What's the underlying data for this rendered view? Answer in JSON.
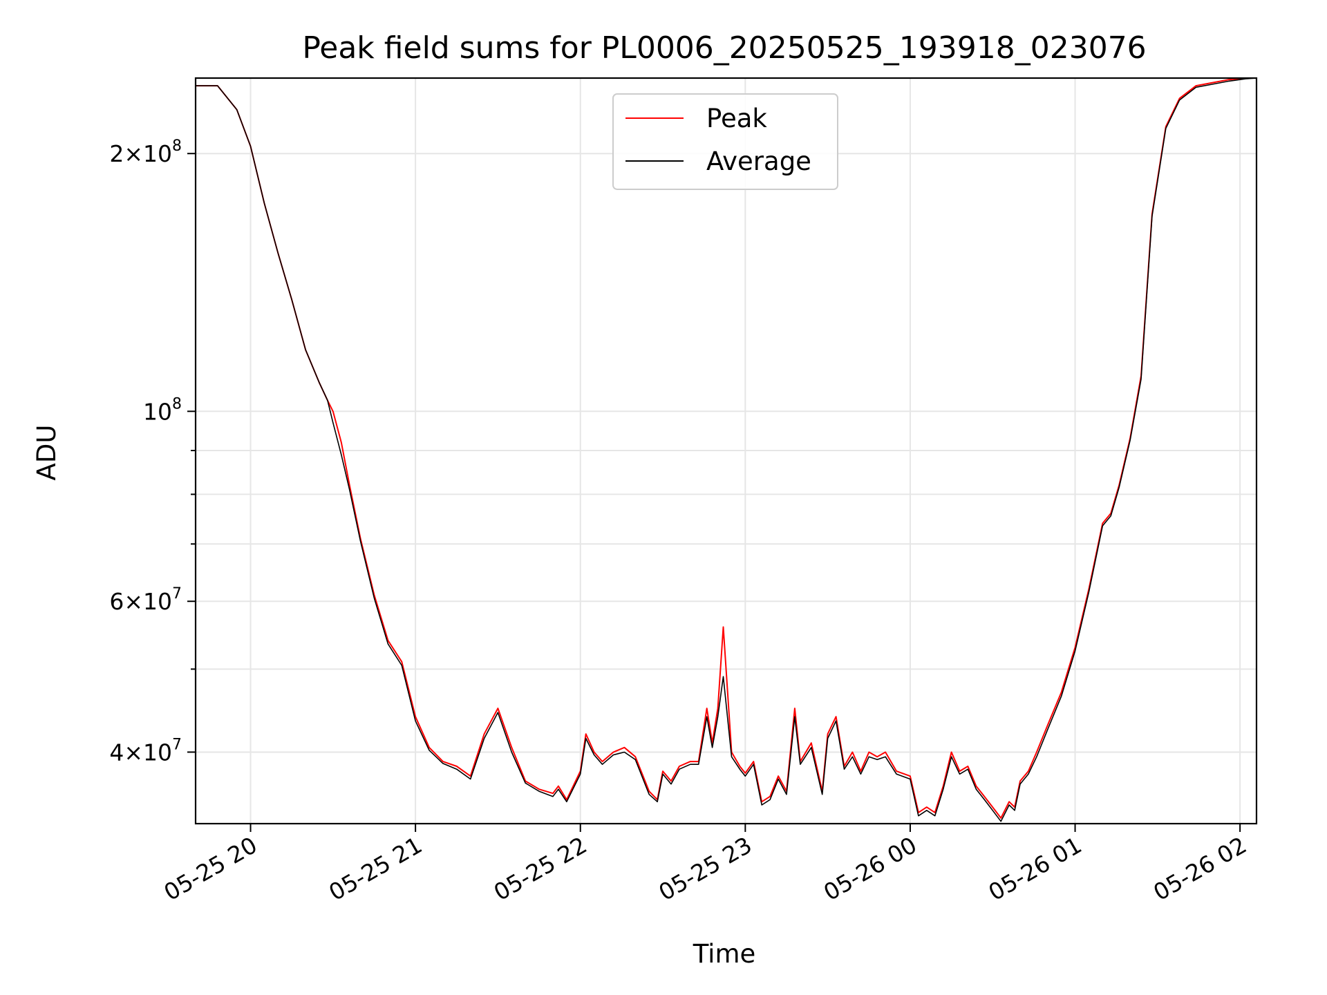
{
  "chart_data": {
    "type": "line",
    "title": "Peak field sums for PL0006_20250525_193918_023076",
    "xlabel": "Time",
    "ylabel": "ADU",
    "y_scale": "log",
    "grid": true,
    "legend_placement": "upper center",
    "xlim": [
      "2025-05-25 19:40",
      "2025-05-26 02:06"
    ],
    "ylim": [
      33000000,
      245000000
    ],
    "x_ticks": [
      {
        "label": "05-25 20",
        "value": "2025-05-25 20:00"
      },
      {
        "label": "05-25 21",
        "value": "2025-05-25 21:00"
      },
      {
        "label": "05-25 22",
        "value": "2025-05-25 22:00"
      },
      {
        "label": "05-25 23",
        "value": "2025-05-25 23:00"
      },
      {
        "label": "05-26 00",
        "value": "2025-05-26 00:00"
      },
      {
        "label": "05-26 01",
        "value": "2025-05-26 01:00"
      },
      {
        "label": "05-26 02",
        "value": "2025-05-26 02:00"
      }
    ],
    "y_major_ticks": [
      {
        "mantissa": "4",
        "exp": "7",
        "value": 40000000
      },
      {
        "mantissa": "6",
        "exp": "7",
        "value": 60000000
      },
      {
        "mantissa": "",
        "exp": "8",
        "value": 100000000
      },
      {
        "mantissa": "2",
        "exp": "8",
        "value": 200000000
      }
    ],
    "y_minor_ticks": [
      50000000,
      70000000,
      80000000,
      90000000
    ],
    "x": [
      "2025-05-25 19:40",
      "2025-05-25 19:48",
      "2025-05-25 19:55",
      "2025-05-25 20:00",
      "2025-05-25 20:05",
      "2025-05-25 20:10",
      "2025-05-25 20:15",
      "2025-05-25 20:20",
      "2025-05-25 20:25",
      "2025-05-25 20:28",
      "2025-05-25 20:30",
      "2025-05-25 20:33",
      "2025-05-25 20:36",
      "2025-05-25 20:40",
      "2025-05-25 20:45",
      "2025-05-25 20:50",
      "2025-05-25 20:55",
      "2025-05-25 21:00",
      "2025-05-25 21:05",
      "2025-05-25 21:10",
      "2025-05-25 21:15",
      "2025-05-25 21:20",
      "2025-05-25 21:25",
      "2025-05-25 21:30",
      "2025-05-25 21:35",
      "2025-05-25 21:40",
      "2025-05-25 21:45",
      "2025-05-25 21:50",
      "2025-05-25 21:52",
      "2025-05-25 21:55",
      "2025-05-25 22:00",
      "2025-05-25 22:02",
      "2025-05-25 22:05",
      "2025-05-25 22:08",
      "2025-05-25 22:12",
      "2025-05-25 22:16",
      "2025-05-25 22:20",
      "2025-05-25 22:25",
      "2025-05-25 22:28",
      "2025-05-25 22:30",
      "2025-05-25 22:33",
      "2025-05-25 22:36",
      "2025-05-25 22:40",
      "2025-05-25 22:43",
      "2025-05-25 22:46",
      "2025-05-25 22:48",
      "2025-05-25 22:50",
      "2025-05-25 22:52",
      "2025-05-25 22:55",
      "2025-05-25 22:58",
      "2025-05-25 23:00",
      "2025-05-25 23:03",
      "2025-05-25 23:06",
      "2025-05-25 23:09",
      "2025-05-25 23:12",
      "2025-05-25 23:15",
      "2025-05-25 23:18",
      "2025-05-25 23:20",
      "2025-05-25 23:24",
      "2025-05-25 23:28",
      "2025-05-25 23:30",
      "2025-05-25 23:33",
      "2025-05-25 23:36",
      "2025-05-25 23:39",
      "2025-05-25 23:42",
      "2025-05-25 23:45",
      "2025-05-25 23:48",
      "2025-05-25 23:51",
      "2025-05-25 23:55",
      "2025-05-26 00:00",
      "2025-05-26 00:03",
      "2025-05-26 00:06",
      "2025-05-26 00:09",
      "2025-05-26 00:12",
      "2025-05-26 00:15",
      "2025-05-26 00:18",
      "2025-05-26 00:21",
      "2025-05-26 00:24",
      "2025-05-26 00:27",
      "2025-05-26 00:30",
      "2025-05-26 00:33",
      "2025-05-26 00:36",
      "2025-05-26 00:38",
      "2025-05-26 00:40",
      "2025-05-26 00:43",
      "2025-05-26 00:46",
      "2025-05-26 00:50",
      "2025-05-26 00:55",
      "2025-05-26 01:00",
      "2025-05-26 01:05",
      "2025-05-26 01:10",
      "2025-05-26 01:13",
      "2025-05-26 01:16",
      "2025-05-26 01:20",
      "2025-05-26 01:24",
      "2025-05-26 01:28",
      "2025-05-26 01:33",
      "2025-05-26 01:38",
      "2025-05-26 01:44",
      "2025-05-26 01:50",
      "2025-05-26 01:56",
      "2025-05-26 02:02",
      "2025-05-26 02:06"
    ],
    "series": [
      {
        "name": "Peak",
        "color": "#ff0000",
        "values": [
          240000000,
          240000000,
          225000000,
          204000000,
          175000000,
          153000000,
          135000000,
          118000000,
          108000000,
          103000000,
          100000000,
          92000000,
          82000000,
          71000000,
          61000000,
          54000000,
          51000000,
          44000000,
          40500000,
          39000000,
          38500000,
          37500000,
          42000000,
          45000000,
          40500000,
          37000000,
          36200000,
          35800000,
          36500000,
          35200000,
          38000000,
          42000000,
          40000000,
          39000000,
          40000000,
          40500000,
          39500000,
          36000000,
          35200000,
          38000000,
          37000000,
          38500000,
          39000000,
          39000000,
          45000000,
          41000000,
          45000000,
          56000000,
          40000000,
          38500000,
          37800000,
          39000000,
          35000000,
          35500000,
          37500000,
          36000000,
          45000000,
          39000000,
          41000000,
          36000000,
          42000000,
          44000000,
          38500000,
          40000000,
          38000000,
          40000000,
          39500000,
          40000000,
          38000000,
          37500000,
          34000000,
          34500000,
          34000000,
          36500000,
          40000000,
          38000000,
          38500000,
          36500000,
          35500000,
          34500000,
          33500000,
          35000000,
          34500000,
          37000000,
          38000000,
          40000000,
          43000000,
          47000000,
          53000000,
          62000000,
          74000000,
          76000000,
          82000000,
          93000000,
          110000000,
          170000000,
          215000000,
          232000000,
          240000000,
          242000000,
          244000000,
          245000000,
          245000000
        ]
      },
      {
        "name": "Average",
        "color": "#000000",
        "values": [
          240000000,
          240000000,
          225000000,
          204000000,
          175000000,
          153000000,
          135000000,
          118000000,
          108000000,
          103000000,
          97000000,
          89000000,
          81000000,
          70500000,
          60500000,
          53500000,
          50500000,
          43500000,
          40200000,
          38800000,
          38200000,
          37200000,
          41500000,
          44500000,
          40000000,
          36800000,
          36000000,
          35500000,
          36200000,
          35000000,
          37700000,
          41500000,
          39700000,
          38700000,
          39700000,
          40000000,
          39200000,
          35700000,
          35000000,
          37700000,
          36700000,
          38200000,
          38700000,
          38700000,
          44000000,
          40500000,
          44000000,
          49000000,
          39500000,
          38200000,
          37500000,
          38700000,
          34700000,
          35200000,
          37200000,
          35700000,
          44000000,
          38700000,
          40500000,
          35700000,
          41500000,
          43500000,
          38200000,
          39500000,
          37700000,
          39500000,
          39200000,
          39500000,
          37700000,
          37200000,
          33700000,
          34200000,
          33700000,
          36200000,
          39500000,
          37700000,
          38200000,
          36200000,
          35200000,
          34200000,
          33200000,
          34700000,
          34200000,
          36700000,
          37700000,
          39500000,
          42500000,
          46500000,
          52500000,
          61500000,
          73500000,
          75500000,
          81500000,
          92500000,
          109000000,
          169000000,
          214000000,
          231000000,
          239000000,
          241000000,
          243000000,
          244500000,
          245000000
        ]
      }
    ]
  }
}
